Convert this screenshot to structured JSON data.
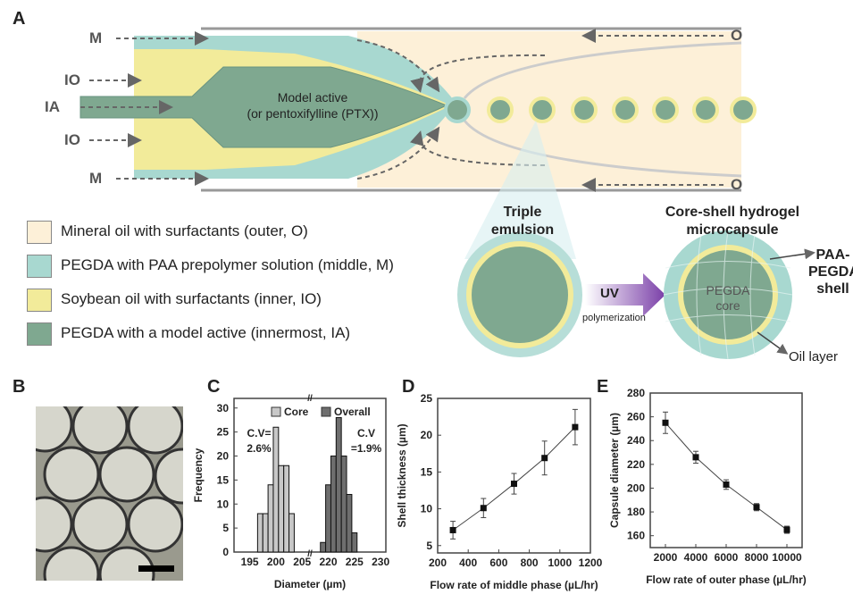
{
  "panels": {
    "A": "A",
    "B": "B",
    "C": "C",
    "D": "D",
    "E": "E"
  },
  "schematic": {
    "inlets": {
      "M": "M",
      "IO": "IO",
      "IA": "IA",
      "O": "O"
    },
    "core_label_1": "Model active",
    "core_label_2": "(or pentoxifylline  (PTX))",
    "triple_emulsion_1": "Triple",
    "triple_emulsion_2": "emulsion",
    "capsule_title_1": "Core-shell hydrogel",
    "capsule_title_2": "microcapsule",
    "uv": "UV",
    "polymerization": "polymerization",
    "pegda_core_1": "PEGDA",
    "pegda_core_2": "core",
    "shell_1": "PAA-",
    "shell_2": "PEGDA",
    "shell_3": "shell",
    "oil_layer": "Oil layer",
    "colors": {
      "outer": "#fdf0d8",
      "middle": "#a8d8d0",
      "inner": "#f2eb9a",
      "innermost": "#7fa890"
    }
  },
  "legend": [
    {
      "label": "Mineral oil with surfactants (outer, O)",
      "color": "#fdf0d8"
    },
    {
      "label": "PEGDA with PAA prepolymer solution (middle, M)",
      "color": "#a8d8d0"
    },
    {
      "label": "Soybean oil with surfactants (inner, IO)",
      "color": "#f2eb9a"
    },
    {
      "label": "PEGDA with a model active (innermost, IA)",
      "color": "#7fa890"
    }
  ],
  "chart_data": [
    {
      "panel": "C",
      "type": "bar",
      "xlabel": "Diameter (µm)",
      "ylabel": "Frequency",
      "xticks": [
        195,
        200,
        205,
        220,
        225,
        230
      ],
      "yticks": [
        0,
        5,
        10,
        15,
        20,
        25,
        30
      ],
      "ylim": [
        0,
        32
      ],
      "axis_break": "205-218",
      "legend": [
        "Core",
        "Overall"
      ],
      "annotations": [
        "C.V=",
        "2.6%",
        "C.V",
        "=1.9%"
      ],
      "series": [
        {
          "name": "Core",
          "color": "#c8c8c8",
          "x": [
            197,
            198,
            199,
            200,
            201,
            202,
            203
          ],
          "values": [
            8,
            8,
            14,
            26,
            18,
            18,
            8
          ]
        },
        {
          "name": "Overall",
          "color": "#6e6e6e",
          "x": [
            219,
            220,
            221,
            222,
            223,
            224,
            225
          ],
          "values": [
            2,
            14,
            20,
            28,
            20,
            12,
            4
          ]
        }
      ]
    },
    {
      "panel": "D",
      "type": "line",
      "xlabel": "Flow rate of middle phase (µL/hr)",
      "ylabel": "Shell thickness (µm)",
      "xlim": [
        200,
        1200
      ],
      "ylim": [
        4,
        25
      ],
      "xticks": [
        200,
        400,
        600,
        800,
        1000,
        1200
      ],
      "yticks": [
        5,
        10,
        15,
        20,
        25
      ],
      "x": [
        300,
        500,
        700,
        900,
        1100
      ],
      "y": [
        7.1,
        10.1,
        13.4,
        16.9,
        21.1
      ],
      "err": [
        1.2,
        1.3,
        1.4,
        2.3,
        2.4
      ]
    },
    {
      "panel": "E",
      "type": "line",
      "xlabel": "Flow rate of outer phase (µL/hr)",
      "ylabel": "Capsule diameter (µm)",
      "xlim": [
        1000,
        11000
      ],
      "ylim": [
        150,
        280
      ],
      "xticks": [
        2000,
        4000,
        6000,
        8000,
        10000
      ],
      "yticks": [
        160,
        180,
        200,
        220,
        240,
        260,
        280
      ],
      "x": [
        2000,
        4000,
        6000,
        8000,
        10000
      ],
      "y": [
        255,
        226,
        203,
        184,
        165
      ],
      "err": [
        9,
        5,
        4,
        3,
        3
      ]
    }
  ]
}
